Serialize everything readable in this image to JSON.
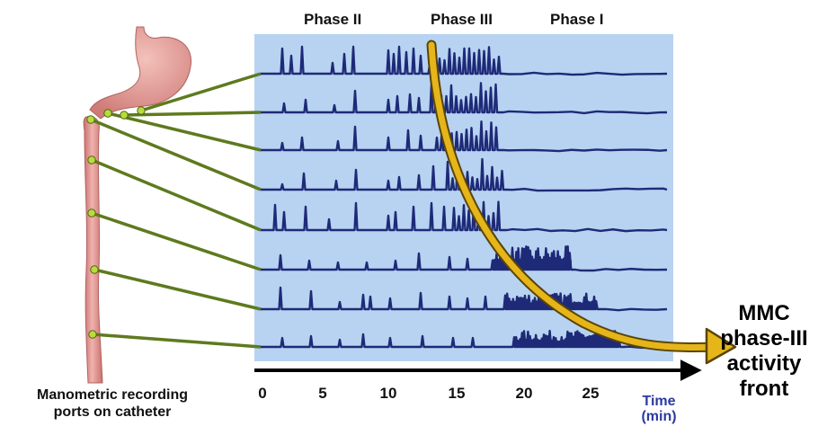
{
  "phases": [
    "Phase II",
    "Phase III",
    "Phase I"
  ],
  "time_axis": {
    "ticks": [
      "0",
      "5",
      "10",
      "15",
      "20",
      "25"
    ],
    "label_line1": "Time",
    "label_line2": "(min)"
  },
  "catheter_label": {
    "line1": "Manometric recording",
    "line2": "ports on catheter"
  },
  "front_label": {
    "line1": "MMC",
    "line2": "phase-III",
    "line3": "activity",
    "line4": "front"
  },
  "colors": {
    "panel": "#b7d3f1",
    "trace": "#1e2a78",
    "front_arrow": "#e5b51a",
    "leader_lines": "#5e7a1e",
    "port_dots": "#b9dc3c",
    "tissue": "#e49a9a"
  },
  "icons": [
    "stomach-illustration",
    "catheter-illustration",
    "time-arrow-icon",
    "activity-front-arrow-icon"
  ]
}
